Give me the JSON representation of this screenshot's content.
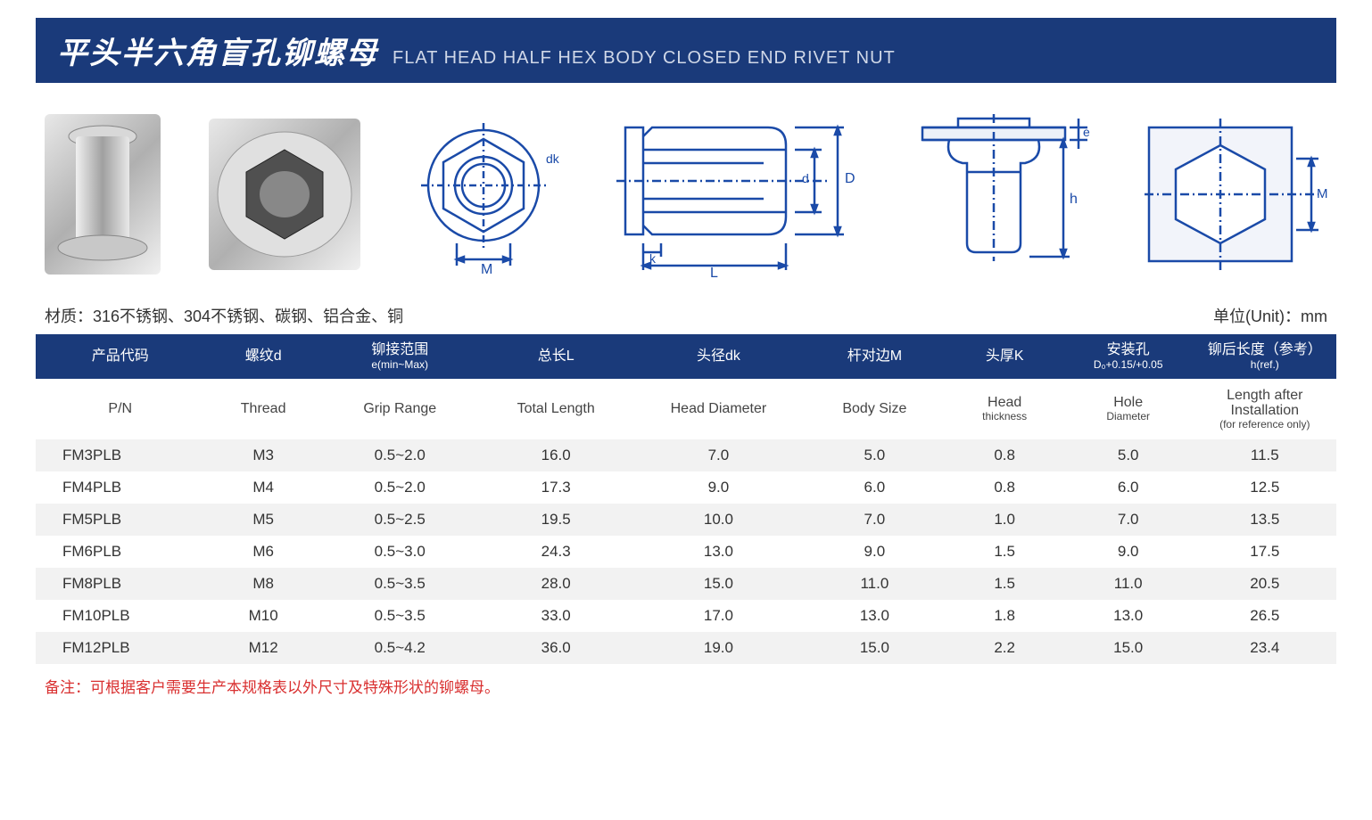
{
  "title": {
    "cn": "平头半六角盲孔铆螺母",
    "en": "FLAT HEAD HALF HEX BODY CLOSED END RIVET NUT"
  },
  "meta": {
    "material_label": "材质：316不锈钢、304不锈钢、碳钢、铝合金、铜",
    "unit_label": "单位(Unit)：mm"
  },
  "diagram_labels": {
    "M": "M",
    "dk": "dk",
    "k": "k",
    "d": "d",
    "L": "L",
    "D": "D",
    "e": "e",
    "h": "h",
    "M0": "M₀"
  },
  "table": {
    "header_cn": [
      {
        "main": "产品代码",
        "sub": ""
      },
      {
        "main": "螺纹d",
        "sub": ""
      },
      {
        "main": "铆接范围",
        "sub": "e(min~Max)"
      },
      {
        "main": "总长L",
        "sub": ""
      },
      {
        "main": "头径dk",
        "sub": ""
      },
      {
        "main": "杆对边M",
        "sub": ""
      },
      {
        "main": "头厚K",
        "sub": ""
      },
      {
        "main": "安装孔",
        "sub": "D₀+0.15/+0.05"
      },
      {
        "main": "铆后长度（参考）",
        "sub": "h(ref.)"
      }
    ],
    "header_en": [
      {
        "main": "P/N",
        "sub": ""
      },
      {
        "main": "Thread",
        "sub": ""
      },
      {
        "main": "Grip Range",
        "sub": ""
      },
      {
        "main": "Total Length",
        "sub": ""
      },
      {
        "main": "Head Diameter",
        "sub": ""
      },
      {
        "main": "Body Size",
        "sub": ""
      },
      {
        "main": "Head",
        "sub": "thickness"
      },
      {
        "main": "Hole",
        "sub": "Diameter"
      },
      {
        "main": "Length after Installation",
        "sub": "(for reference only)"
      }
    ],
    "col_widths": [
      "13%",
      "9%",
      "12%",
      "12%",
      "13%",
      "11%",
      "9%",
      "10%",
      "15%"
    ],
    "rows": [
      [
        "FM3PLB",
        "M3",
        "0.5~2.0",
        "16.0",
        "7.0",
        "5.0",
        "0.8",
        "5.0",
        "11.5"
      ],
      [
        "FM4PLB",
        "M4",
        "0.5~2.0",
        "17.3",
        "9.0",
        "6.0",
        "0.8",
        "6.0",
        "12.5"
      ],
      [
        "FM5PLB",
        "M5",
        "0.5~2.5",
        "19.5",
        "10.0",
        "7.0",
        "1.0",
        "7.0",
        "13.5"
      ],
      [
        "FM6PLB",
        "M6",
        "0.5~3.0",
        "24.3",
        "13.0",
        "9.0",
        "1.5",
        "9.0",
        "17.5"
      ],
      [
        "FM8PLB",
        "M8",
        "0.5~3.5",
        "28.0",
        "15.0",
        "11.0",
        "1.5",
        "11.0",
        "20.5"
      ],
      [
        "FM10PLB",
        "M10",
        "0.5~3.5",
        "33.0",
        "17.0",
        "13.0",
        "1.8",
        "13.0",
        "26.5"
      ],
      [
        "FM12PLB",
        "M12",
        "0.5~4.2",
        "36.0",
        "19.0",
        "15.0",
        "2.2",
        "15.0",
        "23.4"
      ]
    ]
  },
  "footnote": "备注：可根据客户需要生产本规格表以外尺寸及特殊形状的铆螺母。",
  "colors": {
    "header_bg": "#1a3a7a",
    "header_text": "#ffffff",
    "diagram_stroke": "#1a4aa8",
    "row_alt": "#f2f2f2",
    "footnote": "#d93030"
  }
}
